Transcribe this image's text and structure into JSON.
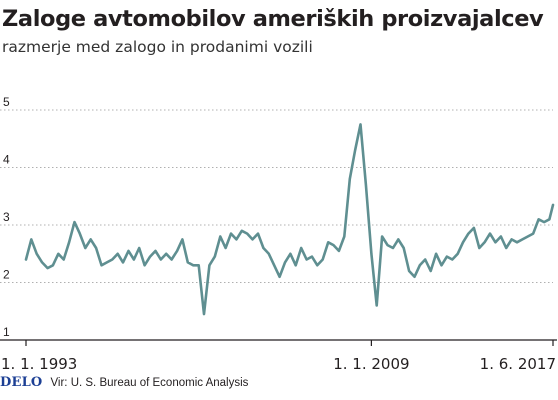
{
  "title": "Zaloge avtomobilov ameriških proizvajalcev",
  "subtitle": "razmerje med zalogo in prodanimi vozili",
  "footer": {
    "brand": "DELO",
    "source": "Vir: U. S. Bureau of Economic Analysis"
  },
  "colors": {
    "line": "#5f8f91",
    "grid": "#b0b0b0",
    "axis": "#231f20",
    "brand": "#1c3f94"
  },
  "chart_data": {
    "type": "line",
    "title": "Zaloge avtomobilov ameriških proizvajalcev",
    "subtitle": "razmerje med zalogo in prodanimi vozili",
    "xlabel": "",
    "ylabel": "",
    "ylim": [
      1,
      5
    ],
    "xlim": [
      "1993-01-01",
      "2017-06-01"
    ],
    "yticks": [
      "1",
      "2",
      "3",
      "4",
      "5"
    ],
    "grid": "horizontal dotted",
    "xtick_labels": [
      {
        "label": "1. 1. 1993",
        "date": "1993-01-01"
      },
      {
        "label": "1. 1. 2009",
        "date": "2009-01-01"
      },
      {
        "label": "1. 6. 2017",
        "date": "2017-06-01"
      }
    ],
    "series": [
      {
        "x": [
          "1993-01",
          "1993-04",
          "1993-07",
          "1993-10",
          "1994-01",
          "1994-04",
          "1994-07",
          "1994-10",
          "1995-01",
          "1995-04",
          "1995-07",
          "1995-10",
          "1996-01",
          "1996-04",
          "1996-07",
          "1996-10",
          "1997-01",
          "1997-04",
          "1997-07",
          "1997-10",
          "1998-01",
          "1998-04",
          "1998-07",
          "1998-10",
          "1999-01",
          "1999-04",
          "1999-07",
          "1999-10",
          "2000-01",
          "2000-04",
          "2000-07",
          "2000-10",
          "2001-01",
          "2001-04",
          "2001-07",
          "2001-10",
          "2002-01",
          "2002-04",
          "2002-07",
          "2002-10",
          "2003-01",
          "2003-04",
          "2003-07",
          "2003-10",
          "2004-01",
          "2004-04",
          "2004-07",
          "2004-10",
          "2005-01",
          "2005-04",
          "2005-07",
          "2005-10",
          "2006-01",
          "2006-04",
          "2006-07",
          "2006-10",
          "2007-01",
          "2007-04",
          "2007-07",
          "2007-10",
          "2008-01",
          "2008-04",
          "2008-07",
          "2008-10",
          "2009-01",
          "2009-04",
          "2009-07",
          "2009-10",
          "2010-01",
          "2010-04",
          "2010-07",
          "2010-10",
          "2011-01",
          "2011-04",
          "2011-07",
          "2011-10",
          "2012-01",
          "2012-04",
          "2012-07",
          "2012-10",
          "2013-01",
          "2013-04",
          "2013-07",
          "2013-10",
          "2014-01",
          "2014-04",
          "2014-07",
          "2014-10",
          "2015-01",
          "2015-04",
          "2015-07",
          "2015-10",
          "2016-01",
          "2016-04",
          "2016-07",
          "2016-10",
          "2017-01",
          "2017-04",
          "2017-06"
        ],
        "y": [
          2.4,
          2.75,
          2.5,
          2.35,
          2.25,
          2.3,
          2.5,
          2.4,
          2.7,
          3.05,
          2.85,
          2.6,
          2.75,
          2.6,
          2.3,
          2.35,
          2.4,
          2.5,
          2.35,
          2.55,
          2.4,
          2.6,
          2.3,
          2.45,
          2.55,
          2.4,
          2.5,
          2.4,
          2.55,
          2.75,
          2.35,
          2.3,
          2.3,
          1.45,
          2.3,
          2.45,
          2.8,
          2.6,
          2.85,
          2.75,
          2.9,
          2.85,
          2.75,
          2.85,
          2.6,
          2.5,
          2.3,
          2.1,
          2.35,
          2.5,
          2.3,
          2.6,
          2.4,
          2.45,
          2.3,
          2.4,
          2.7,
          2.65,
          2.55,
          2.8,
          3.8,
          4.3,
          4.75,
          3.7,
          2.5,
          1.6,
          2.8,
          2.65,
          2.6,
          2.75,
          2.6,
          2.2,
          2.1,
          2.3,
          2.4,
          2.2,
          2.5,
          2.3,
          2.45,
          2.4,
          2.5,
          2.7,
          2.85,
          2.95,
          2.6,
          2.7,
          2.85,
          2.7,
          2.8,
          2.6,
          2.75,
          2.7,
          2.75,
          2.8,
          2.85,
          3.1,
          3.05,
          3.1,
          3.35
        ]
      }
    ]
  }
}
